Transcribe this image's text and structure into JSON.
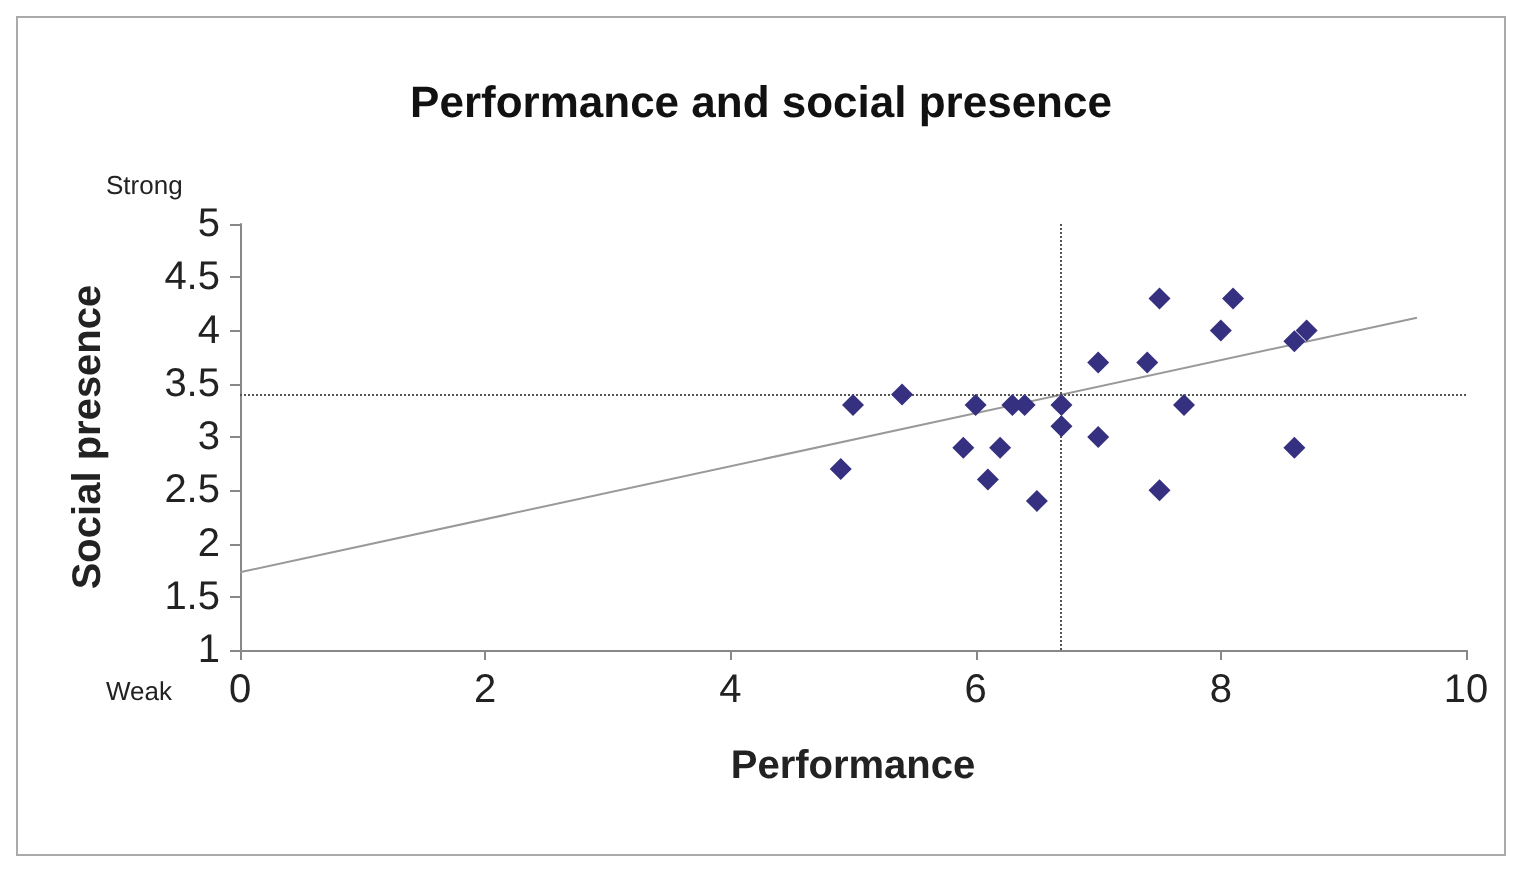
{
  "chart_data": {
    "type": "scatter",
    "title": "Performance and social presence",
    "xlabel": "Performance",
    "ylabel": "Social presence",
    "annotations": [
      "Strong",
      "Weak"
    ],
    "series": [
      {
        "color": "#35307f",
        "marker": "diamond",
        "x": [
          4.9,
          5.0,
          5.4,
          5.9,
          6.0,
          6.1,
          6.2,
          6.3,
          6.4,
          6.5,
          6.7,
          6.7,
          7.0,
          7.0,
          7.4,
          7.5,
          7.5,
          7.7,
          8.0,
          8.1,
          8.6,
          8.7,
          8.6
        ],
        "values": [
          2.7,
          3.3,
          3.4,
          2.9,
          3.3,
          2.6,
          2.9,
          3.3,
          3.3,
          2.4,
          3.3,
          3.1,
          3.7,
          3.0,
          3.7,
          4.3,
          2.5,
          3.3,
          4.0,
          4.3,
          3.9,
          4.0,
          2.9
        ]
      },
      {
        "type": "line",
        "color": "#999999",
        "marker": "none",
        "line_style": "solid",
        "x": [
          0,
          9.6
        ],
        "values": [
          1.73,
          4.12
        ]
      }
    ],
    "ref_lines": [
      {
        "axis": "x",
        "value": 6.7,
        "color": "#555555",
        "line_style": "dotted"
      },
      {
        "axis": "y",
        "value": 3.4,
        "color": "#555555",
        "line_style": "dotted"
      }
    ],
    "xlim": [
      0,
      10
    ],
    "xticks": [
      0,
      2,
      4,
      6,
      8,
      10
    ],
    "ylim": [
      1,
      5
    ],
    "yticks": [
      1,
      1.5,
      2,
      2.5,
      3,
      3.5,
      4,
      4.5,
      5
    ],
    "grid": false
  }
}
